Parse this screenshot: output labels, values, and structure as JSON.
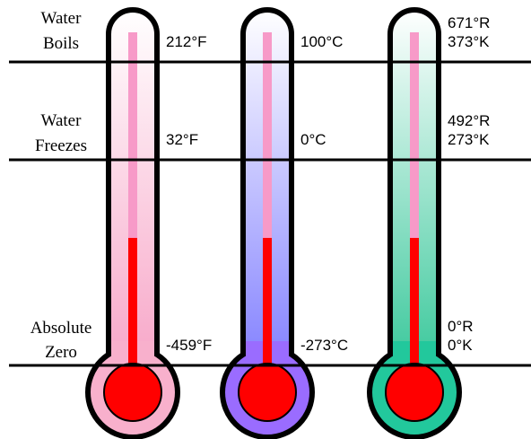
{
  "row_labels": [
    [
      "Water",
      "Boils"
    ],
    [
      "Water",
      "Freezes"
    ],
    [
      "Absolute",
      "Zero"
    ]
  ],
  "thermometers": [
    {
      "labels": [
        [
          "212°F"
        ],
        [
          "32°F"
        ],
        [
          "-459°F"
        ]
      ]
    },
    {
      "labels": [
        [
          "100°C"
        ],
        [
          "0°C"
        ],
        [
          "-273°C"
        ]
      ]
    },
    {
      "labels": [
        [
          "671°R",
          "373°K"
        ],
        [
          "492°R",
          "273°K"
        ],
        [
          "0°R",
          "0°K"
        ]
      ]
    }
  ]
}
